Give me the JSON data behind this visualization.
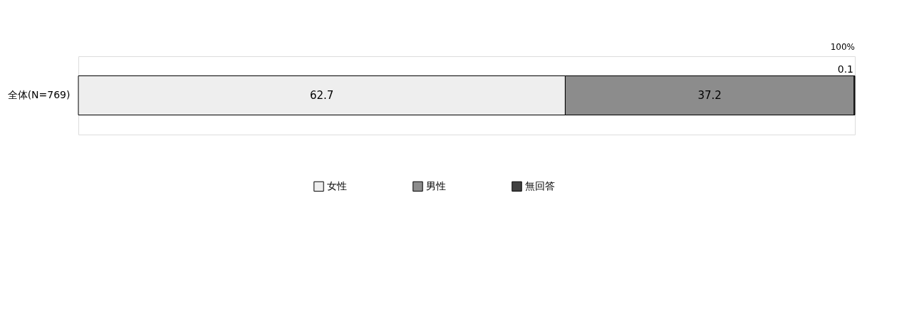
{
  "chart_data": {
    "type": "bar",
    "orientation": "horizontal",
    "stacked": true,
    "categories": [
      "全体(N=769)"
    ],
    "series": [
      {
        "name": "女性",
        "color": "#eeeeee",
        "values": [
          62.7
        ]
      },
      {
        "name": "男性",
        "color": "#8c8c8c",
        "values": [
          37.2
        ]
      },
      {
        "name": "無回答",
        "color": "#404040",
        "values": [
          0.1
        ]
      }
    ],
    "xlim": [
      0,
      100
    ],
    "annotations": [
      "100%"
    ],
    "data_labels": true,
    "legend": "bottom",
    "grid": false
  }
}
